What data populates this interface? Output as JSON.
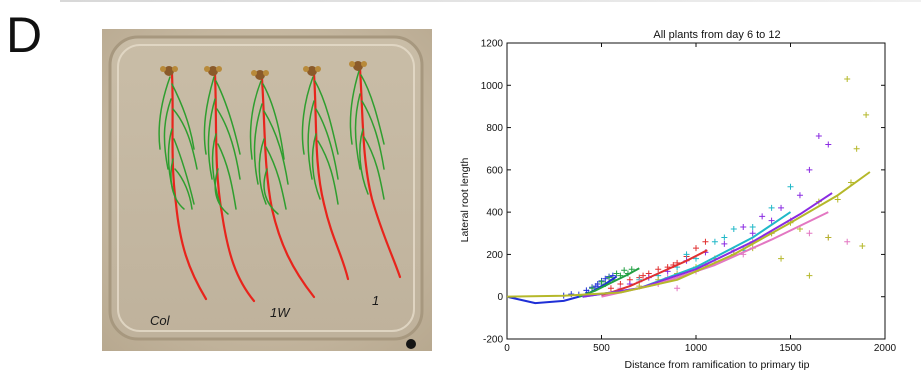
{
  "figure": {
    "panel_label": "D",
    "photo_labels": [
      "Col",
      "1W",
      "1"
    ]
  },
  "chart_data": {
    "type": "scatter",
    "title": "All plants from day 6 to 12",
    "xlabel": "Distance from ramification to primary tip",
    "ylabel": "Lateral root length",
    "xlim": [
      0,
      2000
    ],
    "ylim": [
      -200,
      1200
    ],
    "xticks": [
      0,
      500,
      1000,
      1500,
      2000
    ],
    "yticks": [
      -200,
      0,
      200,
      400,
      600,
      800,
      1000,
      1200
    ],
    "grid": false,
    "marker": "+",
    "series": [
      {
        "color": "#1f2fd6",
        "points": [
          [
            300,
            5
          ],
          [
            340,
            12
          ],
          [
            380,
            10
          ],
          [
            420,
            30
          ],
          [
            450,
            45
          ],
          [
            480,
            60
          ],
          [
            500,
            75
          ],
          [
            520,
            85
          ],
          [
            540,
            95
          ],
          [
            560,
            100
          ],
          [
            430,
            20
          ],
          [
            470,
            50
          ]
        ],
        "fit": [
          [
            0,
            0
          ],
          [
            150,
            -30
          ],
          [
            300,
            -20
          ],
          [
            420,
            10
          ],
          [
            520,
            60
          ],
          [
            580,
            95
          ]
        ]
      },
      {
        "color": "#22a043",
        "points": [
          [
            450,
            40
          ],
          [
            500,
            70
          ],
          [
            540,
            90
          ],
          [
            580,
            110
          ],
          [
            620,
            125
          ],
          [
            660,
            130
          ],
          [
            600,
            100
          ],
          [
            520,
            60
          ],
          [
            560,
            80
          ],
          [
            640,
            110
          ]
        ],
        "fit": [
          [
            380,
            0
          ],
          [
            470,
            30
          ],
          [
            560,
            70
          ],
          [
            640,
            105
          ],
          [
            700,
            135
          ]
        ]
      },
      {
        "color": "#e03030",
        "points": [
          [
            550,
            40
          ],
          [
            600,
            60
          ],
          [
            650,
            80
          ],
          [
            700,
            90
          ],
          [
            750,
            110
          ],
          [
            800,
            130
          ],
          [
            850,
            140
          ],
          [
            900,
            160
          ],
          [
            950,
            190
          ],
          [
            1000,
            230
          ],
          [
            1050,
            260
          ],
          [
            720,
            100
          ],
          [
            880,
            150
          ]
        ],
        "fit": [
          [
            500,
            5
          ],
          [
            650,
            50
          ],
          [
            800,
            110
          ],
          [
            950,
            170
          ],
          [
            1060,
            220
          ]
        ]
      },
      {
        "color": "#20b8c8",
        "points": [
          [
            600,
            30
          ],
          [
            700,
            80
          ],
          [
            800,
            100
          ],
          [
            900,
            140
          ],
          [
            1000,
            180
          ],
          [
            1100,
            260
          ],
          [
            1200,
            320
          ],
          [
            1300,
            330
          ],
          [
            1400,
            420
          ],
          [
            1500,
            520
          ],
          [
            950,
            200
          ],
          [
            1150,
            280
          ],
          [
            1250,
            220
          ]
        ],
        "fit": [
          [
            400,
            0
          ],
          [
            700,
            40
          ],
          [
            1000,
            140
          ],
          [
            1300,
            280
          ],
          [
            1500,
            400
          ]
        ]
      },
      {
        "color": "#8a2be2",
        "points": [
          [
            650,
            60
          ],
          [
            750,
            90
          ],
          [
            850,
            120
          ],
          [
            950,
            170
          ],
          [
            1050,
            210
          ],
          [
            1150,
            250
          ],
          [
            1250,
            330
          ],
          [
            1350,
            380
          ],
          [
            1450,
            420
          ],
          [
            1550,
            480
          ],
          [
            1650,
            760
          ],
          [
            1700,
            720
          ],
          [
            1600,
            600
          ],
          [
            1400,
            360
          ],
          [
            1300,
            300
          ]
        ],
        "fit": [
          [
            400,
            0
          ],
          [
            700,
            40
          ],
          [
            1000,
            130
          ],
          [
            1300,
            260
          ],
          [
            1550,
            390
          ],
          [
            1720,
            490
          ]
        ]
      },
      {
        "color": "#e377c2",
        "points": [
          [
            600,
            40
          ],
          [
            700,
            70
          ],
          [
            800,
            60
          ],
          [
            900,
            40
          ],
          [
            1000,
            120
          ],
          [
            1100,
            180
          ],
          [
            1200,
            220
          ],
          [
            1300,
            260
          ],
          [
            1400,
            300
          ],
          [
            1500,
            360
          ],
          [
            1600,
            300
          ],
          [
            1700,
            280
          ],
          [
            1800,
            260
          ],
          [
            850,
            90
          ],
          [
            1050,
            150
          ],
          [
            1250,
            200
          ]
        ],
        "fit": [
          [
            500,
            0
          ],
          [
            800,
            60
          ],
          [
            1100,
            150
          ],
          [
            1400,
            270
          ],
          [
            1700,
            400
          ]
        ]
      },
      {
        "color": "#b5b82a",
        "points": [
          [
            700,
            50
          ],
          [
            800,
            80
          ],
          [
            900,
            110
          ],
          [
            1000,
            140
          ],
          [
            1100,
            180
          ],
          [
            1200,
            200
          ],
          [
            1300,
            230
          ],
          [
            1400,
            300
          ],
          [
            1500,
            350
          ],
          [
            1600,
            100
          ],
          [
            1700,
            280
          ],
          [
            1800,
            1030
          ],
          [
            1850,
            700
          ],
          [
            1900,
            860
          ],
          [
            1750,
            460
          ],
          [
            1650,
            450
          ],
          [
            1550,
            320
          ],
          [
            1450,
            180
          ],
          [
            1820,
            540
          ],
          [
            1880,
            240
          ]
        ],
        "fit": [
          [
            0,
            0
          ],
          [
            300,
            5
          ],
          [
            600,
            20
          ],
          [
            900,
            80
          ],
          [
            1200,
            200
          ],
          [
            1500,
            350
          ],
          [
            1750,
            480
          ],
          [
            1920,
            590
          ]
        ]
      }
    ]
  }
}
